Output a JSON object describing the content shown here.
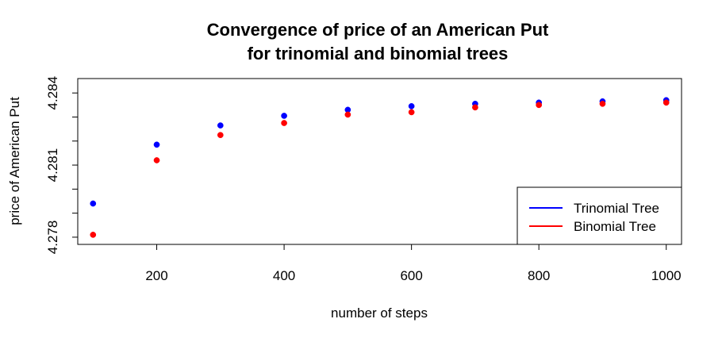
{
  "chart_data": {
    "type": "scatter",
    "title": [
      "Convergence of price of an American Put",
      "for trinomial and binomial trees"
    ],
    "xlabel": "number of steps",
    "ylabel": "price of American Put",
    "xlim": [
      76,
      1024
    ],
    "ylim": [
      4.2777,
      4.2846
    ],
    "x_ticks": [
      200,
      400,
      600,
      800,
      1000
    ],
    "x_tick_labels": [
      "200",
      "400",
      "600",
      "800",
      "1000"
    ],
    "y_ticks": [
      4.278,
      4.279,
      4.28,
      4.281,
      4.282,
      4.283,
      4.284
    ],
    "y_tick_labels": [
      "4.278",
      "",
      "",
      "4.281",
      "",
      "",
      "4.284"
    ],
    "x": [
      100,
      200,
      300,
      400,
      500,
      600,
      700,
      800,
      900,
      1000
    ],
    "series": [
      {
        "name": "Trinomial Tree",
        "color": "#0000ff",
        "values": [
          4.2794,
          4.28185,
          4.28265,
          4.28305,
          4.2833,
          4.28345,
          4.28355,
          4.2836,
          4.28365,
          4.2837
        ]
      },
      {
        "name": "Binomial Tree",
        "color": "#ff0000",
        "values": [
          4.2781,
          4.2812,
          4.28225,
          4.28275,
          4.2831,
          4.2832,
          4.2834,
          4.2835,
          4.28355,
          4.2836
        ]
      }
    ],
    "grid": false,
    "legend_position": "bottom-right"
  }
}
